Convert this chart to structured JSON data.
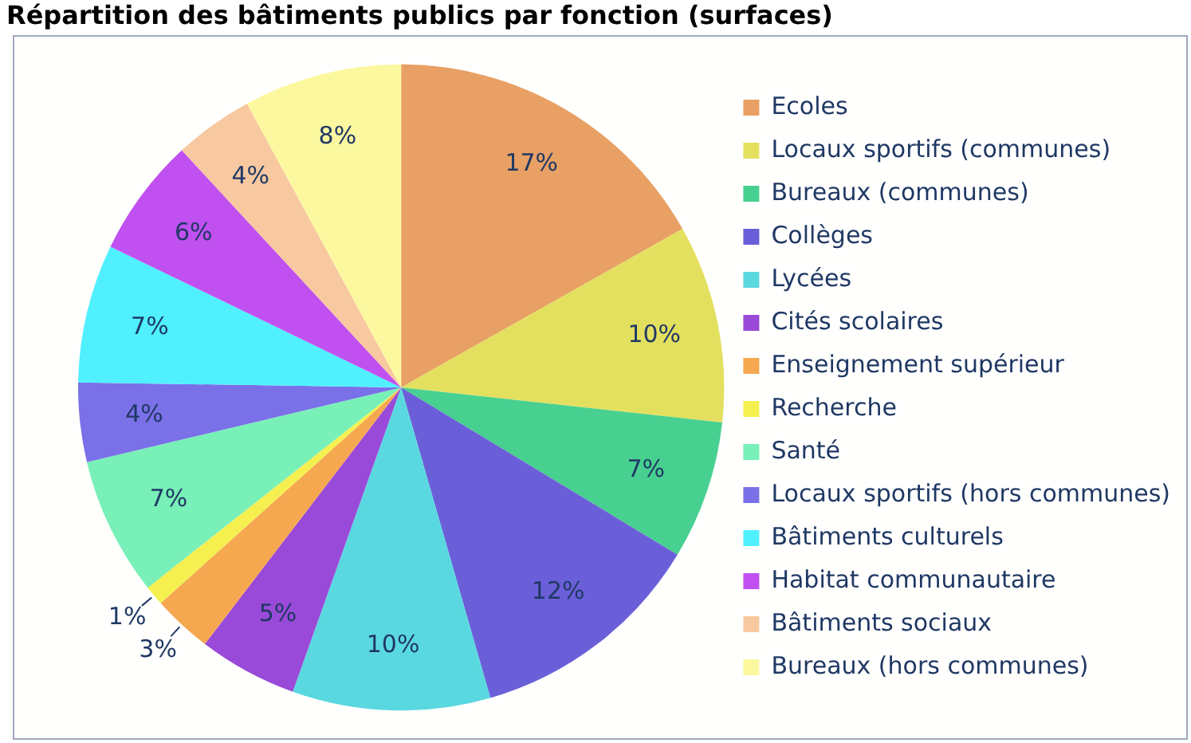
{
  "chart_data": {
    "type": "pie",
    "title": "Répartition des bâtiments publics par fonction (surfaces)",
    "categories": [
      "Ecoles",
      "Locaux sportifs (communes)",
      "Bureaux (communes)",
      "Collèges",
      "Lycées",
      "Cités scolaires",
      "Enseignement supérieur",
      "Recherche",
      "Santé",
      "Locaux sportifs (hors communes)",
      "Bâtiments culturels",
      "Habitat communautaire",
      "Bâtiments sociaux",
      "Bureaux (hors communes)"
    ],
    "values": [
      17,
      10,
      7,
      12,
      10,
      5,
      3,
      1,
      7,
      4,
      7,
      6,
      4,
      8
    ],
    "value_labels": [
      "17%",
      "10%",
      "7%",
      "12%",
      "10%",
      "5%",
      "3%",
      "1%",
      "7%",
      "4%",
      "7%",
      "6%",
      "4%",
      "8%"
    ],
    "colors": [
      "#e8a064",
      "#e3e060",
      "#48d090",
      "#6a5fd8",
      "#5ad8e0",
      "#9a4ad8",
      "#f5a850",
      "#f5f050",
      "#78f0b8",
      "#7a70e8",
      "#50f0ff",
      "#c050f0",
      "#f8c8a0",
      "#fcf8a0"
    ],
    "legend": "right"
  }
}
